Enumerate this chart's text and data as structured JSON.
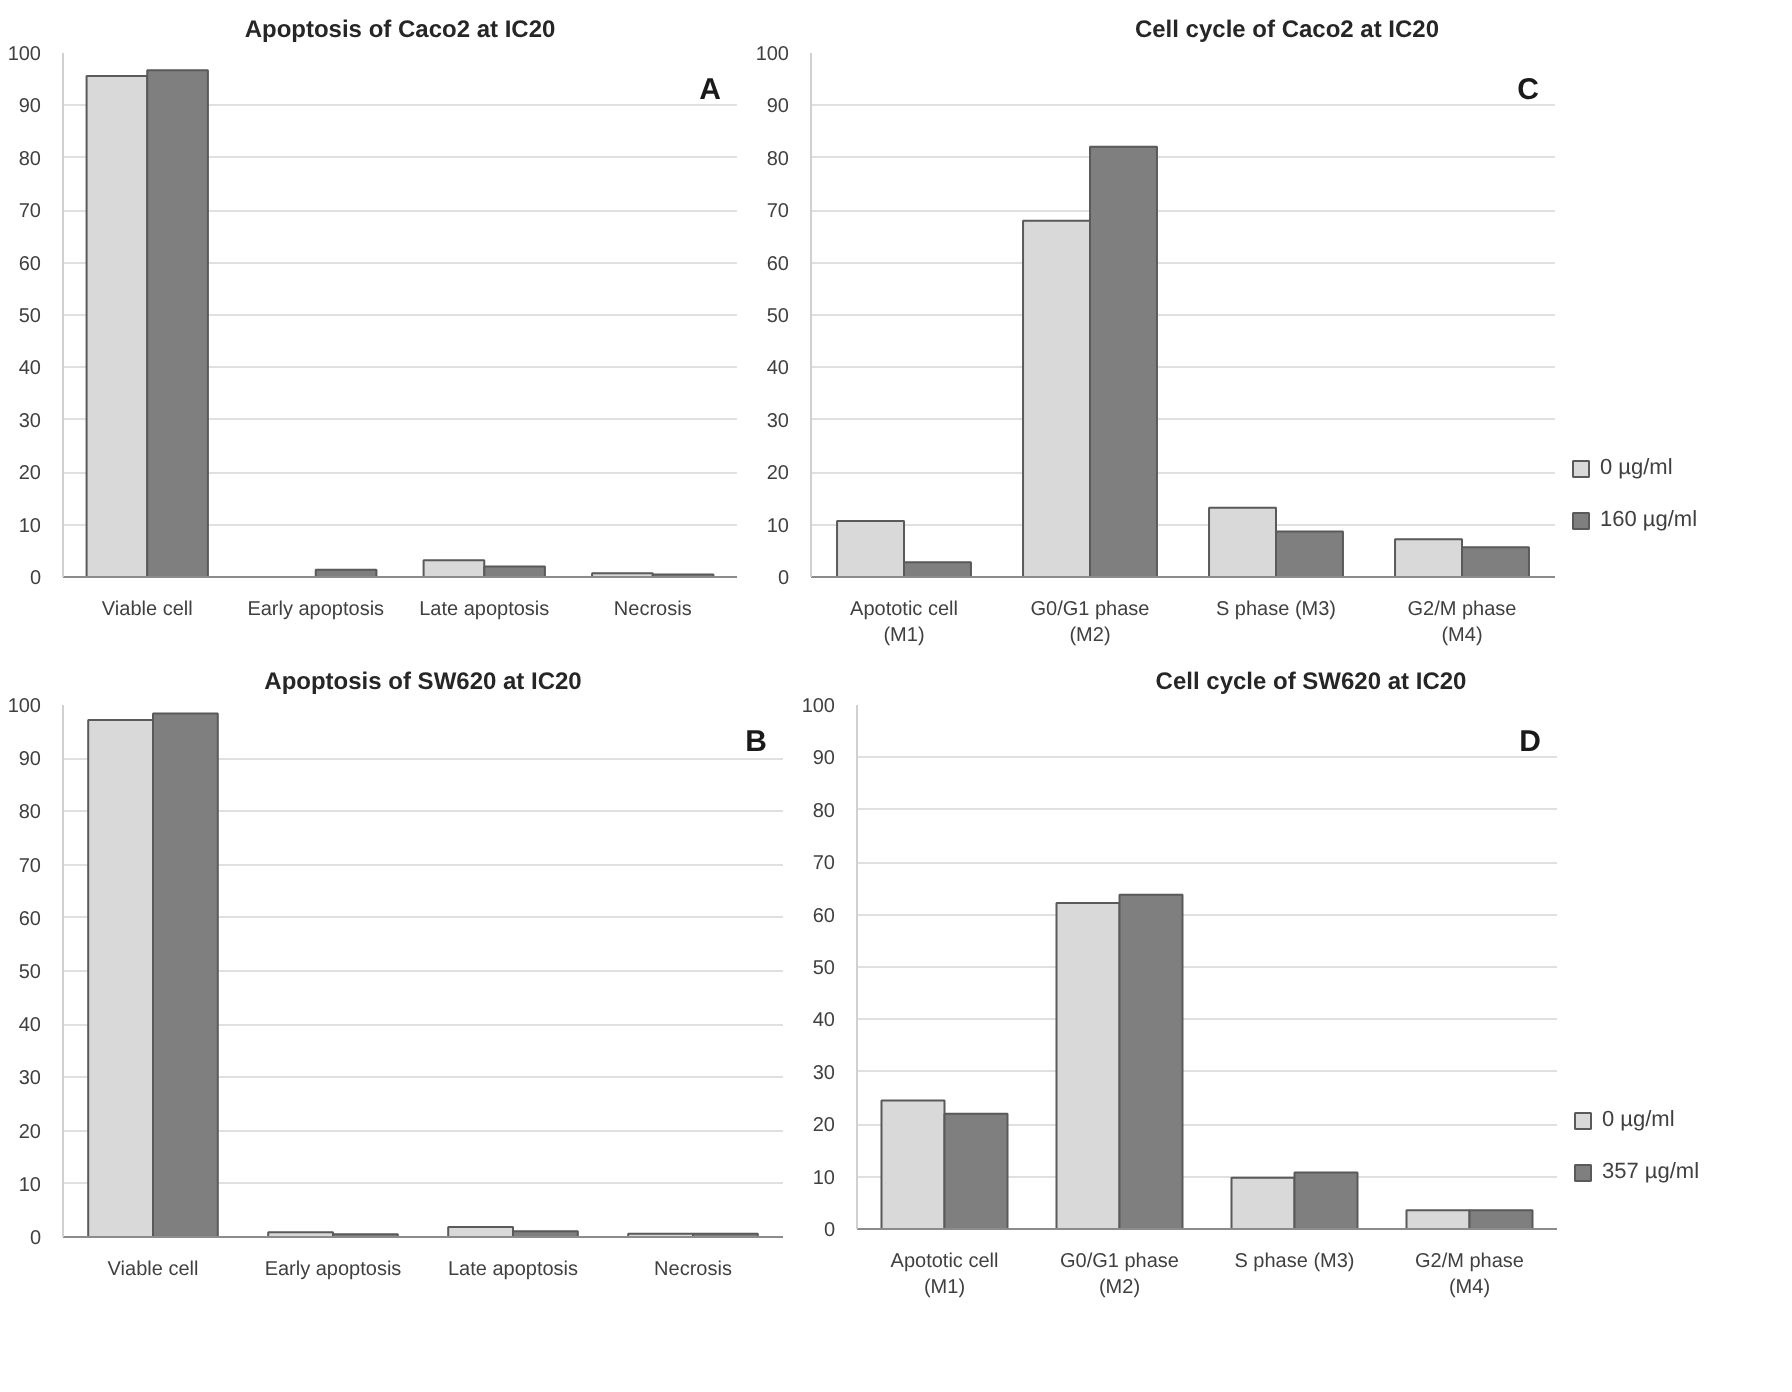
{
  "chart_data": [
    {
      "type": "bar",
      "title": "Apoptosis of Caco2 at IC20",
      "categories": [
        "Viable cell",
        "Early apoptosis",
        "Late apoptosis",
        "Necrosis"
      ],
      "series": [
        {
          "color": "#d9d9d9",
          "values": [
            95.6,
            null,
            3.2,
            0.7
          ]
        },
        {
          "color": "#7f7f7f",
          "values": [
            96.7,
            1.4,
            2.0,
            0.5
          ]
        }
      ],
      "ylim": [
        0,
        100
      ],
      "yticks": [
        0,
        10,
        20,
        30,
        40,
        50,
        60,
        70,
        80,
        90,
        100
      ],
      "grid": "y",
      "annotations": [
        "A"
      ]
    },
    {
      "type": "bar",
      "title": "Cell cycle of Caco2 at IC20",
      "categories": [
        "Apototic cell (M1)",
        "G0/G1 phase (M2)",
        "S phase (M3)",
        "G2/M phase (M4)"
      ],
      "series": [
        {
          "name": "0 µg/ml",
          "color": "#d9d9d9",
          "values": [
            10.7,
            68.0,
            13.2,
            7.2
          ]
        },
        {
          "name": "160 µg/ml",
          "color": "#7f7f7f",
          "values": [
            2.8,
            82.1,
            8.7,
            5.7
          ]
        }
      ],
      "ylim": [
        0,
        100
      ],
      "yticks": [
        0,
        10,
        20,
        30,
        40,
        50,
        60,
        70,
        80,
        90,
        100
      ],
      "grid": "y",
      "legend": "right",
      "annotations": [
        "C"
      ]
    },
    {
      "type": "bar",
      "title": "Apoptosis of SW620 at IC20",
      "categories": [
        "Viable cell",
        "Early apoptosis",
        "Late apoptosis",
        "Necrosis"
      ],
      "series": [
        {
          "color": "#d9d9d9",
          "values": [
            97.2,
            0.9,
            1.9,
            0.6
          ]
        },
        {
          "color": "#7f7f7f",
          "values": [
            98.4,
            0.5,
            1.1,
            0.6
          ]
        }
      ],
      "ylim": [
        0,
        100
      ],
      "yticks": [
        0,
        10,
        20,
        30,
        40,
        50,
        60,
        70,
        80,
        90,
        100
      ],
      "grid": "y",
      "annotations": [
        "B"
      ]
    },
    {
      "type": "bar",
      "title": "Cell cycle of SW620 at IC20",
      "categories": [
        "Apototic cell (M1)",
        "G0/G1 phase (M2)",
        "S phase (M3)",
        "G2/M phase (M4)"
      ],
      "series": [
        {
          "name": "0 µg/ml",
          "color": "#d9d9d9",
          "values": [
            24.5,
            62.2,
            9.8,
            3.6
          ]
        },
        {
          "name": "357 µg/ml",
          "color": "#7f7f7f",
          "values": [
            22.0,
            63.8,
            10.8,
            3.6
          ]
        }
      ],
      "ylim": [
        0,
        100
      ],
      "yticks": [
        0,
        10,
        20,
        30,
        40,
        50,
        60,
        70,
        80,
        90,
        100
      ],
      "grid": "y",
      "legend": "right",
      "annotations": [
        "D"
      ]
    }
  ]
}
